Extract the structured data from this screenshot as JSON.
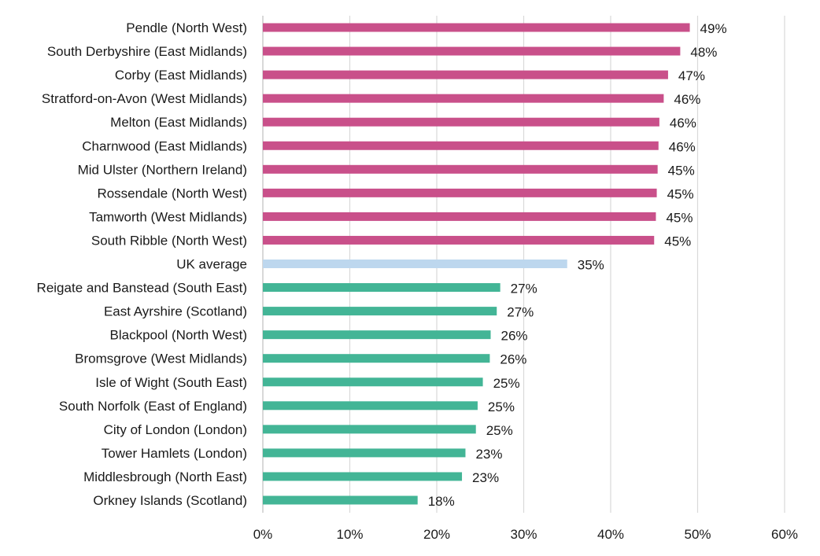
{
  "chart_data": {
    "type": "bar",
    "orientation": "horizontal",
    "categories": [
      "Pendle (North West)",
      "South Derbyshire (East Midlands)",
      "Corby (East Midlands)",
      "Stratford-on-Avon (West Midlands)",
      "Melton (East Midlands)",
      "Charnwood (East Midlands)",
      "Mid Ulster (Northern Ireland)",
      "Rossendale (North West)",
      "Tamworth (West Midlands)",
      "South Ribble (North West)",
      "UK average",
      "Reigate and Banstead (South East)",
      "East Ayrshire (Scotland)",
      "Blackpool (North West)",
      "Bromsgrove (West Midlands)",
      "Isle of Wight (South East)",
      "South Norfolk (East of England)",
      "City of London (London)",
      "Tower Hamlets (London)",
      "Middlesbrough (North East)",
      "Orkney Islands (Scotland)"
    ],
    "values": [
      49.1,
      48.0,
      46.6,
      46.1,
      45.6,
      45.5,
      45.4,
      45.3,
      45.2,
      45.0,
      35.0,
      27.3,
      26.9,
      26.2,
      26.1,
      25.3,
      24.7,
      24.5,
      23.3,
      22.9,
      17.8
    ],
    "data_labels": [
      "49%",
      "48%",
      "47%",
      "46%",
      "46%",
      "46%",
      "45%",
      "45%",
      "45%",
      "45%",
      "35%",
      "27%",
      "27%",
      "26%",
      "26%",
      "25%",
      "25%",
      "25%",
      "23%",
      "23%",
      "18%"
    ],
    "groups": [
      "high",
      "high",
      "high",
      "high",
      "high",
      "high",
      "high",
      "high",
      "high",
      "high",
      "average",
      "low",
      "low",
      "low",
      "low",
      "low",
      "low",
      "low",
      "low",
      "low",
      "low"
    ],
    "colors": {
      "high": "#c9508a",
      "average": "#bdd7ee",
      "low": "#43b596"
    },
    "xlim": [
      0,
      60
    ],
    "x_ticks": [
      0,
      10,
      20,
      30,
      40,
      50,
      60
    ],
    "x_tick_labels": [
      "0%",
      "10%",
      "20%",
      "30%",
      "40%",
      "50%",
      "60%"
    ],
    "title": "",
    "xlabel": "",
    "ylabel": "",
    "grid": "vertical",
    "legend": "none"
  }
}
